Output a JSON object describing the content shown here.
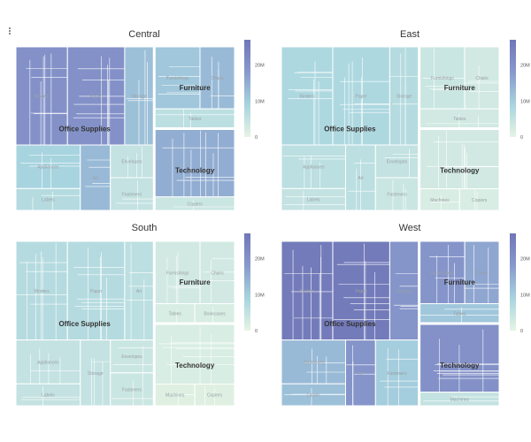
{
  "chart_data": {
    "type": "treemap",
    "color_scale": {
      "ticks": [
        "0",
        "10M",
        "20M"
      ],
      "values": [
        0,
        10000000,
        20000000
      ],
      "max": 27000000,
      "colors": [
        "#e6f4e4",
        "#a7d4df",
        "#8899cc",
        "#7077b8"
      ]
    },
    "panels": [
      {
        "title": "Central",
        "categories": [
          {
            "name": "Office Supplies",
            "value": 160,
            "subs": [
              {
                "name": "Binders",
                "value": 36,
                "color_value": 20000000
              },
              {
                "name": "Paper",
                "value": 40,
                "color_value": 20000000
              },
              {
                "name": "Storage",
                "value": 20,
                "color_value": 12000000
              },
              {
                "name": "Appliances",
                "value": 20,
                "color_value": 9000000
              },
              {
                "name": "Labels",
                "value": 10,
                "color_value": 7000000
              },
              {
                "name": "Art",
                "value": 14,
                "color_value": 13000000
              },
              {
                "name": "Envelopes",
                "value": 10,
                "color_value": 5000000
              },
              {
                "name": "Fasteners",
                "value": 10,
                "color_value": 5000000
              }
            ]
          },
          {
            "name": "Furniture",
            "value": 60,
            "subs": [
              {
                "name": "Furnishings",
                "value": 26,
                "color_value": 11000000
              },
              {
                "name": "Chairs",
                "value": 20,
                "color_value": 13000000
              },
              {
                "name": "Tables",
                "value": 14,
                "color_value": 6000000
              }
            ]
          },
          {
            "name": "Technology",
            "value": 60,
            "subs": [
              {
                "name": "Technology",
                "value": 50,
                "color_value": 15000000
              },
              {
                "name": "Copiers",
                "value": 10,
                "color_value": 4000000
              }
            ]
          }
        ]
      },
      {
        "title": "East",
        "categories": [
          {
            "name": "Office Supplies",
            "value": 160,
            "subs": [
              {
                "name": "Binders",
                "value": 36,
                "color_value": 8000000
              },
              {
                "name": "Paper",
                "value": 40,
                "color_value": 8000000
              },
              {
                "name": "Storage",
                "value": 20,
                "color_value": 7000000
              },
              {
                "name": "Appliances",
                "value": 20,
                "color_value": 6000000
              },
              {
                "name": "Labels",
                "value": 10,
                "color_value": 5000000
              },
              {
                "name": "Art",
                "value": 14,
                "color_value": 6000000
              },
              {
                "name": "Envelopes",
                "value": 10,
                "color_value": 5000000
              },
              {
                "name": "Fasteners",
                "value": 10,
                "color_value": 4000000
              }
            ]
          },
          {
            "name": "Furniture",
            "value": 60,
            "subs": [
              {
                "name": "Furnishings",
                "value": 26,
                "color_value": 4000000
              },
              {
                "name": "Chairs",
                "value": 20,
                "color_value": 3000000
              },
              {
                "name": "Tables",
                "value": 14,
                "color_value": 3000000
              }
            ]
          },
          {
            "name": "Technology",
            "value": 60,
            "subs": [
              {
                "name": "Technology",
                "value": 44,
                "color_value": 3000000
              },
              {
                "name": "Machines",
                "value": 8,
                "color_value": 2000000
              },
              {
                "name": "Copiers",
                "value": 8,
                "color_value": 2000000
              }
            ]
          }
        ]
      },
      {
        "title": "South",
        "categories": [
          {
            "name": "Office Supplies",
            "value": 160,
            "subs": [
              {
                "name": "Binders",
                "value": 36,
                "color_value": 7000000
              },
              {
                "name": "Paper",
                "value": 40,
                "color_value": 7000000
              },
              {
                "name": "Art",
                "value": 20,
                "color_value": 6000000
              },
              {
                "name": "Appliances",
                "value": 20,
                "color_value": 5000000
              },
              {
                "name": "Labels",
                "value": 10,
                "color_value": 5000000
              },
              {
                "name": "Storage",
                "value": 14,
                "color_value": 5000000
              },
              {
                "name": "Envelopes",
                "value": 10,
                "color_value": 4000000
              },
              {
                "name": "Fasteners",
                "value": 10,
                "color_value": 4000000
              }
            ]
          },
          {
            "name": "Furniture",
            "value": 60,
            "subs": [
              {
                "name": "Furnishings",
                "value": 26,
                "color_value": 3000000
              },
              {
                "name": "Chairs",
                "value": 20,
                "color_value": 3000000
              },
              {
                "name": "Tables",
                "value": 7,
                "color_value": 2000000
              },
              {
                "name": "Bookcases",
                "value": 7,
                "color_value": 2000000
              }
            ]
          },
          {
            "name": "Technology",
            "value": 60,
            "subs": [
              {
                "name": "Technology",
                "value": 44,
                "color_value": 2000000
              },
              {
                "name": "Machines",
                "value": 8,
                "color_value": 1000000
              },
              {
                "name": "Copiers",
                "value": 8,
                "color_value": 1000000
              }
            ]
          }
        ]
      },
      {
        "title": "West",
        "categories": [
          {
            "name": "Office Supplies",
            "value": 160,
            "subs": [
              {
                "name": "Binders",
                "value": 36,
                "color_value": 26000000
              },
              {
                "name": "Paper",
                "value": 40,
                "color_value": 26000000
              },
              {
                "name": "Storage",
                "value": 20,
                "color_value": 19000000
              },
              {
                "name": "Appliances",
                "value": 20,
                "color_value": 13000000
              },
              {
                "name": "Labels",
                "value": 10,
                "color_value": 12000000
              },
              {
                "name": "Art",
                "value": 14,
                "color_value": 19000000
              },
              {
                "name": "Fasteners",
                "value": 20,
                "color_value": 10000000
              }
            ]
          },
          {
            "name": "Furniture",
            "value": 60,
            "subs": [
              {
                "name": "Furnishings",
                "value": 26,
                "color_value": 19000000
              },
              {
                "name": "Chairs",
                "value": 20,
                "color_value": 16000000
              },
              {
                "name": "Tables",
                "value": 14,
                "color_value": 11000000
              }
            ]
          },
          {
            "name": "Technology",
            "value": 60,
            "subs": [
              {
                "name": "Technology",
                "value": 50,
                "color_value": 20000000
              },
              {
                "name": "Machines",
                "value": 10,
                "color_value": 5000000
              }
            ]
          }
        ]
      }
    ]
  }
}
